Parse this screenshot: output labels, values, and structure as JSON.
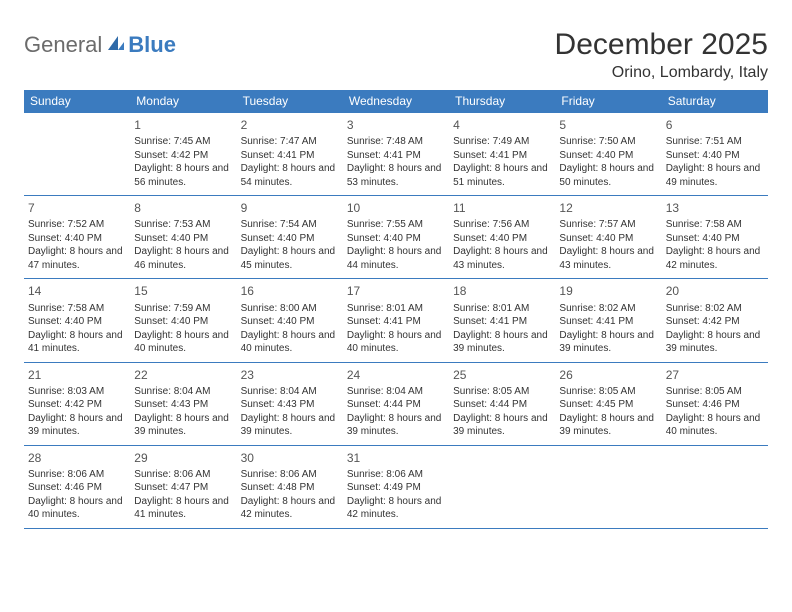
{
  "logo": {
    "text1": "General",
    "text2": "Blue"
  },
  "title": "December 2025",
  "location": "Orino, Lombardy, Italy",
  "colors": {
    "header_bg": "#3b7bbf",
    "header_text": "#ffffff",
    "border": "#3b7bbf",
    "body_text": "#333333",
    "background": "#ffffff"
  },
  "weekdays": [
    "Sunday",
    "Monday",
    "Tuesday",
    "Wednesday",
    "Thursday",
    "Friday",
    "Saturday"
  ],
  "weeks": [
    [
      null,
      {
        "n": "1",
        "sr": "7:45 AM",
        "ss": "4:42 PM",
        "dl": "8 hours and 56 minutes."
      },
      {
        "n": "2",
        "sr": "7:47 AM",
        "ss": "4:41 PM",
        "dl": "8 hours and 54 minutes."
      },
      {
        "n": "3",
        "sr": "7:48 AM",
        "ss": "4:41 PM",
        "dl": "8 hours and 53 minutes."
      },
      {
        "n": "4",
        "sr": "7:49 AM",
        "ss": "4:41 PM",
        "dl": "8 hours and 51 minutes."
      },
      {
        "n": "5",
        "sr": "7:50 AM",
        "ss": "4:40 PM",
        "dl": "8 hours and 50 minutes."
      },
      {
        "n": "6",
        "sr": "7:51 AM",
        "ss": "4:40 PM",
        "dl": "8 hours and 49 minutes."
      }
    ],
    [
      {
        "n": "7",
        "sr": "7:52 AM",
        "ss": "4:40 PM",
        "dl": "8 hours and 47 minutes."
      },
      {
        "n": "8",
        "sr": "7:53 AM",
        "ss": "4:40 PM",
        "dl": "8 hours and 46 minutes."
      },
      {
        "n": "9",
        "sr": "7:54 AM",
        "ss": "4:40 PM",
        "dl": "8 hours and 45 minutes."
      },
      {
        "n": "10",
        "sr": "7:55 AM",
        "ss": "4:40 PM",
        "dl": "8 hours and 44 minutes."
      },
      {
        "n": "11",
        "sr": "7:56 AM",
        "ss": "4:40 PM",
        "dl": "8 hours and 43 minutes."
      },
      {
        "n": "12",
        "sr": "7:57 AM",
        "ss": "4:40 PM",
        "dl": "8 hours and 43 minutes."
      },
      {
        "n": "13",
        "sr": "7:58 AM",
        "ss": "4:40 PM",
        "dl": "8 hours and 42 minutes."
      }
    ],
    [
      {
        "n": "14",
        "sr": "7:58 AM",
        "ss": "4:40 PM",
        "dl": "8 hours and 41 minutes."
      },
      {
        "n": "15",
        "sr": "7:59 AM",
        "ss": "4:40 PM",
        "dl": "8 hours and 40 minutes."
      },
      {
        "n": "16",
        "sr": "8:00 AM",
        "ss": "4:40 PM",
        "dl": "8 hours and 40 minutes."
      },
      {
        "n": "17",
        "sr": "8:01 AM",
        "ss": "4:41 PM",
        "dl": "8 hours and 40 minutes."
      },
      {
        "n": "18",
        "sr": "8:01 AM",
        "ss": "4:41 PM",
        "dl": "8 hours and 39 minutes."
      },
      {
        "n": "19",
        "sr": "8:02 AM",
        "ss": "4:41 PM",
        "dl": "8 hours and 39 minutes."
      },
      {
        "n": "20",
        "sr": "8:02 AM",
        "ss": "4:42 PM",
        "dl": "8 hours and 39 minutes."
      }
    ],
    [
      {
        "n": "21",
        "sr": "8:03 AM",
        "ss": "4:42 PM",
        "dl": "8 hours and 39 minutes."
      },
      {
        "n": "22",
        "sr": "8:04 AM",
        "ss": "4:43 PM",
        "dl": "8 hours and 39 minutes."
      },
      {
        "n": "23",
        "sr": "8:04 AM",
        "ss": "4:43 PM",
        "dl": "8 hours and 39 minutes."
      },
      {
        "n": "24",
        "sr": "8:04 AM",
        "ss": "4:44 PM",
        "dl": "8 hours and 39 minutes."
      },
      {
        "n": "25",
        "sr": "8:05 AM",
        "ss": "4:44 PM",
        "dl": "8 hours and 39 minutes."
      },
      {
        "n": "26",
        "sr": "8:05 AM",
        "ss": "4:45 PM",
        "dl": "8 hours and 39 minutes."
      },
      {
        "n": "27",
        "sr": "8:05 AM",
        "ss": "4:46 PM",
        "dl": "8 hours and 40 minutes."
      }
    ],
    [
      {
        "n": "28",
        "sr": "8:06 AM",
        "ss": "4:46 PM",
        "dl": "8 hours and 40 minutes."
      },
      {
        "n": "29",
        "sr": "8:06 AM",
        "ss": "4:47 PM",
        "dl": "8 hours and 41 minutes."
      },
      {
        "n": "30",
        "sr": "8:06 AM",
        "ss": "4:48 PM",
        "dl": "8 hours and 42 minutes."
      },
      {
        "n": "31",
        "sr": "8:06 AM",
        "ss": "4:49 PM",
        "dl": "8 hours and 42 minutes."
      },
      null,
      null,
      null
    ]
  ],
  "labels": {
    "sunrise": "Sunrise:",
    "sunset": "Sunset:",
    "daylight": "Daylight:"
  }
}
